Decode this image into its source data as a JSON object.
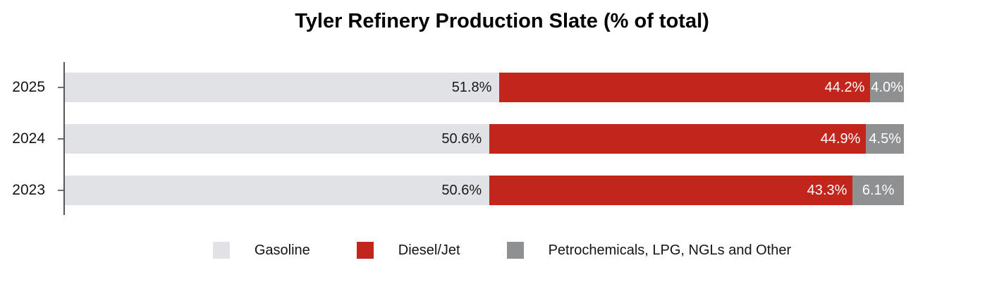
{
  "title": "Tyler Refinery Production Slate (% of total)",
  "chart_data": {
    "type": "bar",
    "orientation": "horizontal-stacked",
    "title": "Tyler Refinery Production Slate (% of total)",
    "categories": [
      "2025",
      "2024",
      "2023"
    ],
    "series": [
      {
        "name": "Gasoline",
        "key": "gasoline",
        "color": "#e1e2e6",
        "values": [
          51.8,
          50.6,
          50.6
        ],
        "labels": [
          "51.8%",
          "50.6%",
          "50.6%"
        ]
      },
      {
        "name": "Diesel/Jet",
        "key": "diesel-jet",
        "color": "#c2251c",
        "values": [
          44.2,
          44.9,
          43.3
        ],
        "labels": [
          "44.2%",
          "44.9%",
          "43.3%"
        ]
      },
      {
        "name": "Petrochemicals, LPG, NGLs and Other",
        "key": "petrochemicals-lpg-ngls-other",
        "color": "#8f9092",
        "values": [
          4.0,
          4.5,
          6.1
        ],
        "labels": [
          "4.0%",
          "4.5%",
          "6.1%"
        ]
      }
    ],
    "xlim": [
      0,
      100
    ],
    "value_suffix": "%",
    "grid": false,
    "legend_position": "bottom"
  }
}
